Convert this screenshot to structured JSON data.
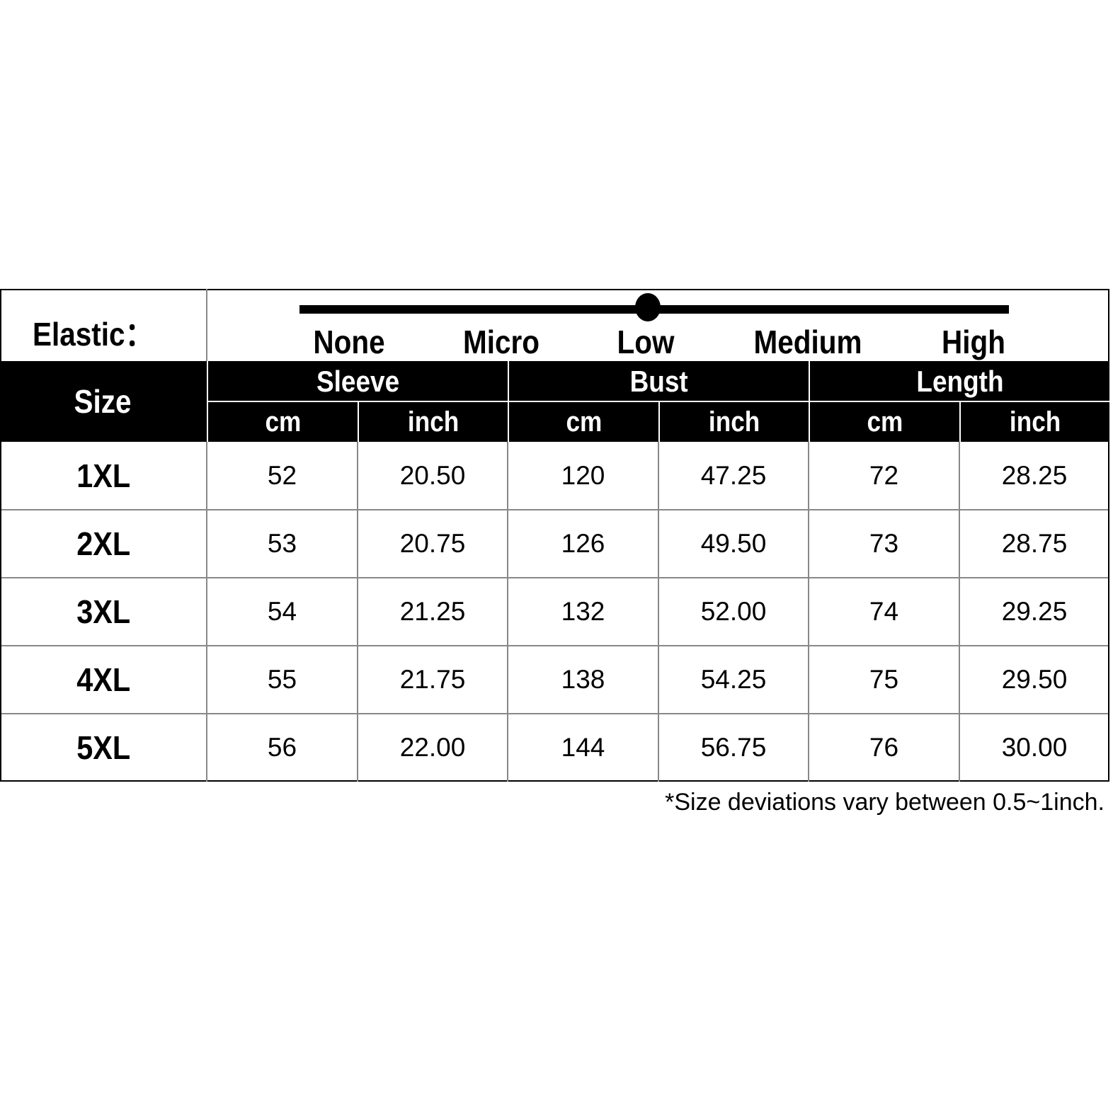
{
  "elastic": {
    "label": "Elastic：",
    "levels": [
      "None",
      "Micro",
      "Low",
      "Medium",
      "High"
    ],
    "selected": "Low"
  },
  "table": {
    "size_header": "Size",
    "groups": [
      "Sleeve",
      "Bust",
      "Length"
    ],
    "units": [
      "cm",
      "inch",
      "cm",
      "inch",
      "cm",
      "inch"
    ],
    "rows": [
      {
        "size": "1XL",
        "values": [
          "52",
          "20.50",
          "120",
          "47.25",
          "72",
          "28.25"
        ]
      },
      {
        "size": "2XL",
        "values": [
          "53",
          "20.75",
          "126",
          "49.50",
          "73",
          "28.75"
        ]
      },
      {
        "size": "3XL",
        "values": [
          "54",
          "21.25",
          "132",
          "52.00",
          "74",
          "29.25"
        ]
      },
      {
        "size": "4XL",
        "values": [
          "55",
          "21.75",
          "138",
          "54.25",
          "75",
          "29.50"
        ]
      },
      {
        "size": "5XL",
        "values": [
          "56",
          "22.00",
          "144",
          "56.75",
          "76",
          "30.00"
        ]
      }
    ]
  },
  "footnote": "*Size deviations vary between 0.5~1inch."
}
